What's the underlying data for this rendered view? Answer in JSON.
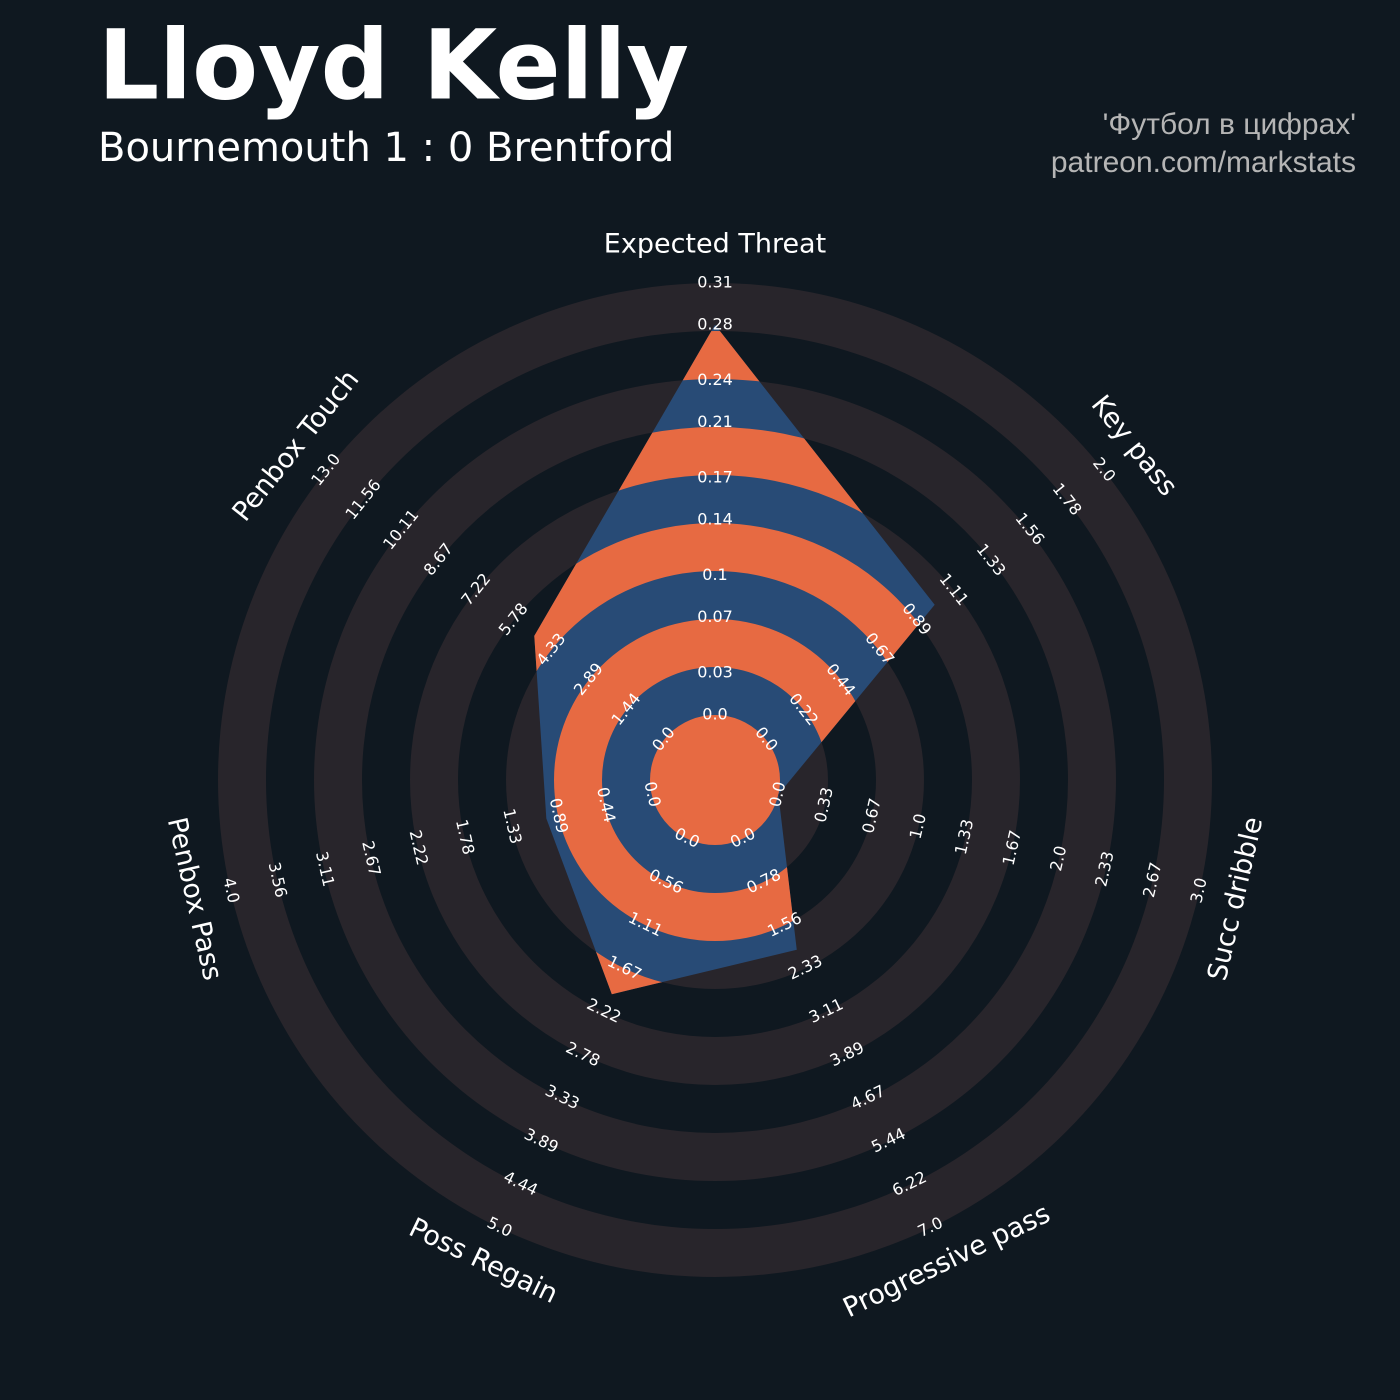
{
  "chart_data": {
    "type": "radar",
    "title": "Lloyd Kelly",
    "subtitle": "Bournemouth 1 : 0 Brentford",
    "credit": [
      "'Футбол в цифрах'",
      "patreon.com/markstats"
    ],
    "color": "#284b76",
    "ring_color": "#e76a42",
    "background_ring_color": "#28252b",
    "params": [
      {
        "name": "Expected Threat",
        "value": 0.28,
        "lim": [
          0,
          0.31
        ],
        "ticks": [
          {
            "value": 0,
            "label": "0.0"
          },
          0.03,
          0.07,
          0.1,
          0.14,
          0.17,
          0.21,
          0.24,
          0.28,
          0.31
        ]
      },
      {
        "name": "Key pass",
        "value": 1,
        "lim": [
          0,
          2
        ],
        "ticks": [
          {
            "value": 0,
            "label": "0.0"
          },
          0.22,
          0.44,
          0.67,
          0.89,
          1.11,
          1.33,
          1.56,
          1.78,
          {
            "value": 2,
            "label": "2.0"
          }
        ]
      },
      {
        "name": "Succ dribble",
        "value": 0,
        "lim": [
          0,
          3
        ],
        "ticks": [
          {
            "value": 0,
            "label": "0.0"
          },
          0.33,
          0.67,
          {
            "value": 1,
            "label": "1.0"
          },
          1.33,
          1.67,
          {
            "value": 2,
            "label": "2.0"
          },
          2.33,
          2.67,
          {
            "value": 3,
            "label": "3.0"
          }
        ]
      },
      {
        "name": "Progressive pass",
        "value": 2,
        "lim": [
          0,
          7
        ],
        "ticks": [
          {
            "value": 0,
            "label": "0.0"
          },
          0.78,
          1.56,
          2.33,
          3.11,
          3.89,
          4.67,
          5.44,
          6.22,
          {
            "value": 7,
            "label": "7.0"
          }
        ]
      },
      {
        "name": "Poss Regain",
        "value": 2,
        "lim": [
          0,
          5
        ],
        "ticks": [
          {
            "value": 0,
            "label": "0.0"
          },
          0.56,
          1.11,
          1.67,
          2.22,
          2.78,
          3.33,
          3.89,
          4.44,
          {
            "value": 5,
            "label": "5.0"
          }
        ]
      },
      {
        "name": "Penbox Pass",
        "value": 1,
        "lim": [
          0,
          4
        ],
        "ticks": [
          {
            "value": 0,
            "label": "0.0"
          },
          0.44,
          0.89,
          1.33,
          1.78,
          2.22,
          2.67,
          3.11,
          3.56,
          {
            "value": 4,
            "label": "4.0"
          }
        ]
      },
      {
        "name": "Penbox Touch",
        "value": 5,
        "lim": [
          0,
          13
        ],
        "ticks": [
          {
            "value": 0,
            "label": "0.0"
          },
          1.44,
          2.89,
          4.33,
          5.78,
          7.22,
          8.67,
          10.11,
          11.56,
          {
            "value": 13,
            "label": "13.0"
          }
        ]
      }
    ]
  }
}
